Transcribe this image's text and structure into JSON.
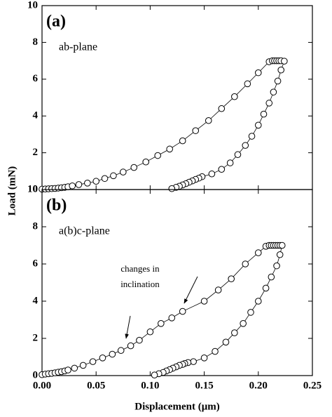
{
  "chart_data": [
    {
      "type": "scatter-line",
      "panel": "(a)",
      "annotation": "ab-plane",
      "ylabel": "Load (mN)",
      "xlim": [
        0,
        0.25
      ],
      "ylim": [
        0,
        10
      ],
      "yticks": [
        0,
        2,
        4,
        6,
        8,
        10
      ],
      "color": "#000000",
      "x": [
        0,
        0.003,
        0.006,
        0.009,
        0.012,
        0.015,
        0.018,
        0.021,
        0.024,
        0.028,
        0.034,
        0.042,
        0.05,
        0.058,
        0.066,
        0.075,
        0.085,
        0.096,
        0.107,
        0.118,
        0.13,
        0.142,
        0.154,
        0.166,
        0.178,
        0.19,
        0.2,
        0.21,
        0.213,
        0.215,
        0.217,
        0.219,
        0.221,
        0.224,
        0.221,
        0.218,
        0.214,
        0.21,
        0.205,
        0.2,
        0.194,
        0.188,
        0.181,
        0.174,
        0.166,
        0.157,
        0.148,
        0.145,
        0.142,
        0.139,
        0.136,
        0.133,
        0.13,
        0.127,
        0.124,
        0.12
      ],
      "values": [
        0.02,
        0.03,
        0.04,
        0.05,
        0.06,
        0.08,
        0.1,
        0.12,
        0.15,
        0.2,
        0.27,
        0.35,
        0.45,
        0.6,
        0.75,
        0.95,
        1.2,
        1.5,
        1.85,
        2.2,
        2.65,
        3.2,
        3.75,
        4.4,
        5.05,
        5.75,
        6.35,
        6.95,
        7.0,
        7.0,
        7.0,
        7.0,
        7.0,
        6.98,
        6.5,
        5.9,
        5.3,
        4.7,
        4.1,
        3.5,
        2.9,
        2.4,
        1.9,
        1.45,
        1.1,
        0.85,
        0.7,
        0.62,
        0.55,
        0.47,
        0.4,
        0.32,
        0.25,
        0.18,
        0.12,
        0.05
      ]
    },
    {
      "type": "scatter-line",
      "panel": "(b)",
      "annotation": "a(b)c-plane",
      "note_lines": [
        "changes in",
        "inclination"
      ],
      "xlabel": "Displacement (μm)",
      "xlim": [
        0,
        0.25
      ],
      "ylim": [
        0,
        10
      ],
      "yticks": [
        0,
        2,
        4,
        6,
        8,
        10
      ],
      "xticks": [
        {
          "value": 0,
          "label": "0.00"
        },
        {
          "value": 0.05,
          "label": "0.05"
        },
        {
          "value": 0.1,
          "label": "0.10"
        },
        {
          "value": 0.15,
          "label": "0.15"
        },
        {
          "value": 0.2,
          "label": "0.20"
        },
        {
          "value": 0.25,
          "label": "0.25"
        }
      ],
      "color": "#000000",
      "x": [
        0,
        0.003,
        0.006,
        0.009,
        0.012,
        0.015,
        0.018,
        0.021,
        0.024,
        0.03,
        0.038,
        0.047,
        0.056,
        0.065,
        0.073,
        0.082,
        0.09,
        0.1,
        0.11,
        0.12,
        0.13,
        0.15,
        0.163,
        0.175,
        0.188,
        0.2,
        0.207,
        0.21,
        0.212,
        0.214,
        0.216,
        0.218,
        0.22,
        0.222,
        0.22,
        0.217,
        0.212,
        0.207,
        0.2,
        0.193,
        0.186,
        0.178,
        0.17,
        0.16,
        0.15,
        0.14,
        0.135,
        0.132,
        0.13,
        0.127,
        0.124,
        0.121,
        0.118,
        0.115,
        0.112,
        0.108,
        0.104
      ],
      "values": [
        0.05,
        0.08,
        0.1,
        0.12,
        0.15,
        0.18,
        0.21,
        0.25,
        0.3,
        0.4,
        0.55,
        0.75,
        0.95,
        1.15,
        1.35,
        1.6,
        1.9,
        2.35,
        2.8,
        3.1,
        3.45,
        4.0,
        4.6,
        5.2,
        6.0,
        6.6,
        6.95,
        7.0,
        7.0,
        7.0,
        7.0,
        7.0,
        7.0,
        7.0,
        6.5,
        5.9,
        5.3,
        4.7,
        4.0,
        3.4,
        2.8,
        2.3,
        1.8,
        1.3,
        0.95,
        0.75,
        0.7,
        0.65,
        0.6,
        0.55,
        0.47,
        0.4,
        0.32,
        0.25,
        0.17,
        0.1,
        0.03
      ]
    }
  ]
}
